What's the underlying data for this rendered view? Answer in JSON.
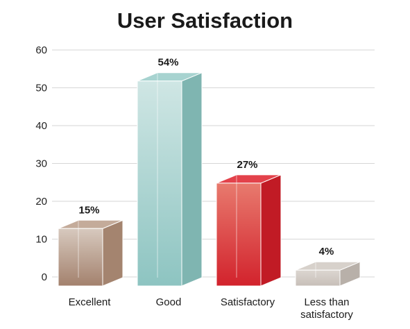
{
  "chart_data": {
    "type": "bar",
    "title": "User Satisfaction",
    "categories": [
      "Excellent",
      "Good",
      "Satisfactory",
      "Less than satisfactory"
    ],
    "category_lines": [
      [
        "Excellent"
      ],
      [
        "Good"
      ],
      [
        "Satisfactory"
      ],
      [
        "Less than",
        "satisfactory"
      ]
    ],
    "values": [
      15,
      54,
      27,
      4
    ],
    "data_labels": [
      "15%",
      "54%",
      "27%",
      "4%"
    ],
    "ylim": [
      0,
      60
    ],
    "yticks": [
      0,
      10,
      20,
      30,
      40,
      50,
      60
    ],
    "grid": true,
    "legend": "none",
    "colors": [
      {
        "front_top": "#d7c9be",
        "front_bottom": "#a3816d",
        "side": "#a4846f",
        "top": "#c4ab9a"
      },
      {
        "front_top": "#cfe6e4",
        "front_bottom": "#8dc4c1",
        "side": "#7fb5b1",
        "top": "#a7d3d0"
      },
      {
        "front_top": "#e87a6e",
        "front_bottom": "#d2222c",
        "side": "#c11b25",
        "top": "#e3424b"
      },
      {
        "front_top": "#dcd6d1",
        "front_bottom": "#c7bfb8",
        "side": "#b8b0a9",
        "top": "#d7d1cb"
      }
    ]
  }
}
